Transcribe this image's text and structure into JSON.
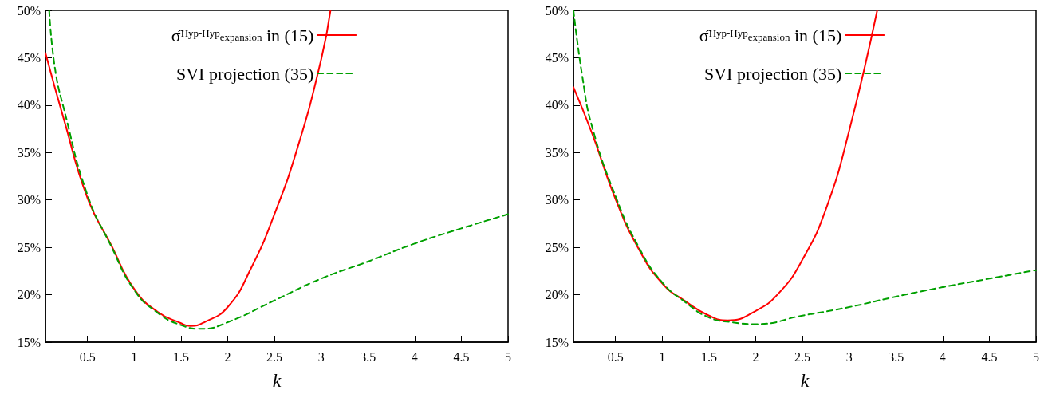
{
  "chart_data": [
    {
      "type": "line",
      "xlabel": "k",
      "xlim": [
        0.05,
        5
      ],
      "ylim": [
        15,
        50
      ],
      "xticks": [
        0.5,
        1,
        1.5,
        2,
        2.5,
        3,
        3.5,
        4,
        4.5,
        5
      ],
      "yticks": [
        {
          "value": 15,
          "label": "15%"
        },
        {
          "value": 20,
          "label": "20%"
        },
        {
          "value": 25,
          "label": "25%"
        },
        {
          "value": 30,
          "label": "30%"
        },
        {
          "value": 35,
          "label": "35%"
        },
        {
          "value": 40,
          "label": "40%"
        },
        {
          "value": 45,
          "label": "45%"
        },
        {
          "value": 50,
          "label": "50%"
        }
      ],
      "grid": false,
      "legend": "top",
      "marker": "none",
      "series": [
        {
          "name": "σ̂$^{Hyp-Hyp}$$_{expansion}$ in (15)",
          "color": "#ff0000",
          "line_style": "solid",
          "x": [
            0.05,
            0.25,
            0.5,
            0.75,
            1,
            1.25,
            1.5,
            1.6,
            1.75,
            2,
            2.25,
            2.5,
            2.75,
            3,
            3.1
          ],
          "values": [
            45.5,
            38.4,
            30.2,
            25.3,
            20.6,
            18.2,
            17.0,
            16.7,
            17.1,
            18.7,
            22.8,
            28.5,
            35.6,
            44.8,
            50
          ]
        },
        {
          "name": "SVI projection (35)",
          "color": "#00a000",
          "line_style": "dashed",
          "x": [
            0.09,
            0.15,
            0.25,
            0.5,
            0.75,
            1,
            1.25,
            1.5,
            1.72,
            2,
            2.5,
            3,
            3.5,
            4,
            4.5,
            5
          ],
          "values": [
            50,
            44,
            39.5,
            30.5,
            25.2,
            20.5,
            18.1,
            16.8,
            16.4,
            17.1,
            19.4,
            21.7,
            23.5,
            25.4,
            27.0,
            28.5
          ]
        }
      ]
    },
    {
      "type": "line",
      "xlabel": "k",
      "xlim": [
        0.05,
        5
      ],
      "ylim": [
        15,
        50
      ],
      "xticks": [
        0.5,
        1,
        1.5,
        2,
        2.5,
        3,
        3.5,
        4,
        4.5,
        5
      ],
      "yticks": [
        {
          "value": 15,
          "label": "15%"
        },
        {
          "value": 20,
          "label": "20%"
        },
        {
          "value": 25,
          "label": "25%"
        },
        {
          "value": 30,
          "label": "30%"
        },
        {
          "value": 35,
          "label": "35%"
        },
        {
          "value": 40,
          "label": "40%"
        },
        {
          "value": 45,
          "label": "45%"
        },
        {
          "value": 50,
          "label": "50%"
        }
      ],
      "grid": false,
      "legend": "top",
      "marker": "none",
      "series": [
        {
          "name": "σ̂$^{Hyp-Hyp}$$_{expansion}$ in (15)",
          "color": "#ff0000",
          "line_style": "solid",
          "x": [
            0.05,
            0.25,
            0.5,
            0.75,
            1,
            1.25,
            1.5,
            1.7,
            2,
            2.25,
            2.5,
            2.75,
            3,
            3.3
          ],
          "values": [
            41.9,
            37.0,
            30.1,
            24.8,
            21.2,
            19.3,
            17.8,
            17.3,
            18.3,
            20.2,
            23.7,
            29.0,
            37.3,
            50
          ]
        },
        {
          "name": "SVI projection (35)",
          "color": "#00a000",
          "line_style": "dashed",
          "x": [
            0.05,
            0.15,
            0.25,
            0.5,
            0.75,
            1,
            1.25,
            1.5,
            1.75,
            2,
            2.5,
            3,
            3.5,
            4,
            4.5,
            5
          ],
          "values": [
            50,
            42.7,
            37.7,
            30.4,
            25.0,
            21.3,
            19.2,
            17.6,
            17.1,
            16.9,
            17.8,
            18.7,
            19.8,
            20.8,
            21.7,
            22.6
          ]
        }
      ]
    }
  ]
}
